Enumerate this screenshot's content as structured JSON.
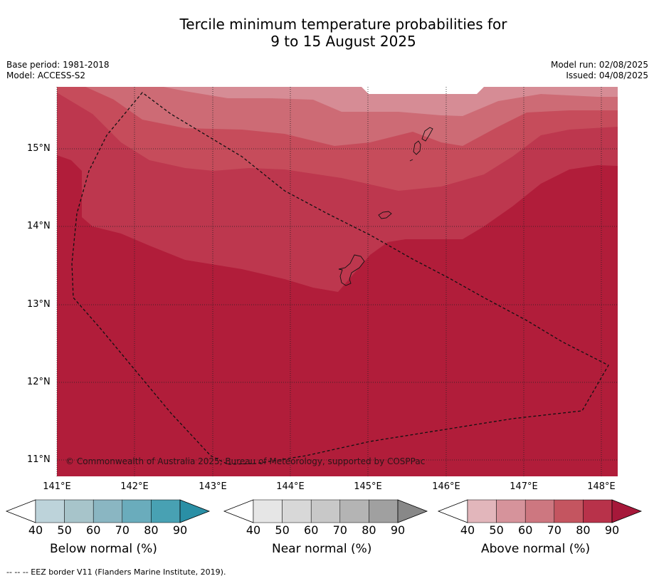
{
  "title_line1": "Tercile minimum temperature probabilities for",
  "title_line2": "9 to 15 August 2025",
  "base_period": "Base period: 1981-2018",
  "model": "Model: ACCESS-S2",
  "model_run": "Model run: 02/08/2025",
  "issued": "Issued: 04/08/2025",
  "copyright": "© Commonwealth of Australia 2025, Bureau of Meteorology, supported by COSPPac",
  "footnote": "--  --  -- EEZ border V11 (Flanders Marine Institute, 2019).",
  "lat_labels": [
    "15°N",
    "14°N",
    "13°N",
    "12°N",
    "11°N"
  ],
  "lon_labels": [
    "141°E",
    "142°E",
    "143°E",
    "144°E",
    "145°E",
    "146°E",
    "147°E",
    "148°E"
  ],
  "colors": {
    "above_70_80": "#bd374e",
    "above_80_90": "#b11d3a",
    "above_60_70": "#c64c5b",
    "above_50_60": "#cd6b75",
    "above_40_50": "#d68c95"
  },
  "legends": [
    {
      "title": "Below normal (%)",
      "ticks": [
        "40",
        "50",
        "60",
        "70",
        "80",
        "90"
      ],
      "colors": [
        "#ffffff",
        "#bdd3da",
        "#a7c4ca",
        "#8ab6c2",
        "#6aacbc",
        "#48a1b3",
        "#2a8fa5"
      ]
    },
    {
      "title": "Near normal (%)",
      "ticks": [
        "40",
        "50",
        "60",
        "70",
        "80",
        "90"
      ],
      "colors": [
        "#ffffff",
        "#e6e6e6",
        "#d8d8d8",
        "#c8c8c8",
        "#b4b4b4",
        "#a0a0a0",
        "#888888"
      ]
    },
    {
      "title": "Above normal (%)",
      "ticks": [
        "40",
        "50",
        "60",
        "70",
        "80",
        "90"
      ],
      "colors": [
        "#ffffff",
        "#e2b6bb",
        "#d6939b",
        "#cd7780",
        "#c45560",
        "#b8324a",
        "#a6183a"
      ]
    }
  ]
}
